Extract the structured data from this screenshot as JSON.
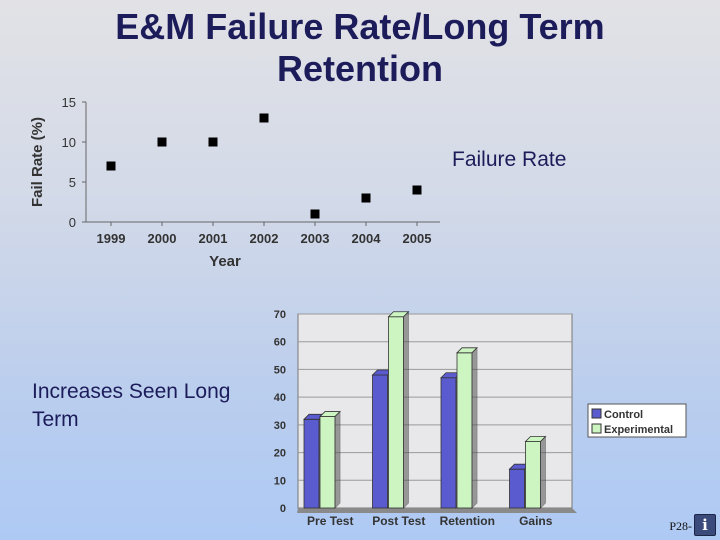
{
  "slide": {
    "title": "E&M Failure Rate/Long Term Retention",
    "failure_rate_label": "Failure Rate",
    "increases_label": "Increases Seen Long Term",
    "footer_text": "P28-",
    "info_icon": "info-icon"
  },
  "chart_data": [
    {
      "type": "scatter",
      "title": "",
      "xlabel": "Year",
      "ylabel": "Fail Rate (%)",
      "x": [
        "1999",
        "2000",
        "2001",
        "2002",
        "2003",
        "2004",
        "2005"
      ],
      "y": [
        7,
        10,
        10,
        13,
        1,
        3,
        4
      ],
      "ylim": [
        0,
        15
      ],
      "yticks": [
        0,
        5,
        10,
        15
      ],
      "grid": false,
      "marker_color": "#000000"
    },
    {
      "type": "bar",
      "title": "",
      "xlabel": "",
      "ylabel": "",
      "categories": [
        "Pre Test",
        "Post Test",
        "Retention",
        "Gains"
      ],
      "series": [
        {
          "name": "Control",
          "values": [
            32,
            48,
            47,
            14
          ],
          "color": "#5b5bd0"
        },
        {
          "name": "Experimental",
          "values": [
            33,
            69,
            56,
            24
          ],
          "color": "#ccf5c2"
        }
      ],
      "ylim": [
        0,
        70
      ],
      "yticks": [
        0,
        10,
        20,
        30,
        40,
        50,
        60,
        70
      ],
      "grid": true,
      "legend": "right"
    }
  ]
}
